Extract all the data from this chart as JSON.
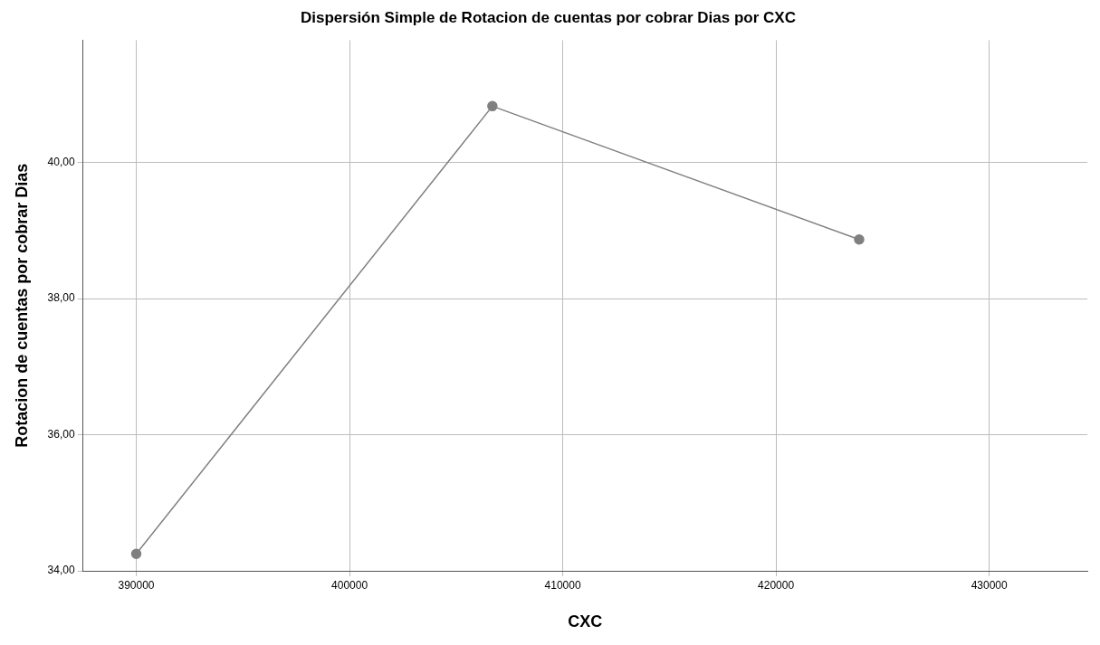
{
  "chart_data": {
    "type": "line",
    "title": "Dispersión Simple de Rotacion de cuentas por cobrar Dias por CXC",
    "xlabel": "CXC",
    "ylabel": "Rotacion de cuentas por cobrar Dias",
    "x": [
      390000,
      406700,
      423900
    ],
    "series": [
      {
        "color": "#808080",
        "values": [
          34.25,
          40.83,
          38.87
        ]
      }
    ],
    "xlim": [
      387500,
      434600
    ],
    "xticks": [
      390000,
      400000,
      410000,
      420000,
      430000
    ],
    "ylim": [
      34,
      41.8
    ],
    "yticks": [
      {
        "value": 34,
        "label": "34,00"
      },
      {
        "value": 36,
        "label": "36,00"
      },
      {
        "value": 38,
        "label": "38,00"
      },
      {
        "value": 40,
        "label": "40,00"
      }
    ],
    "grid": true,
    "legend": false,
    "marker": "circle",
    "line_style": "solid"
  }
}
